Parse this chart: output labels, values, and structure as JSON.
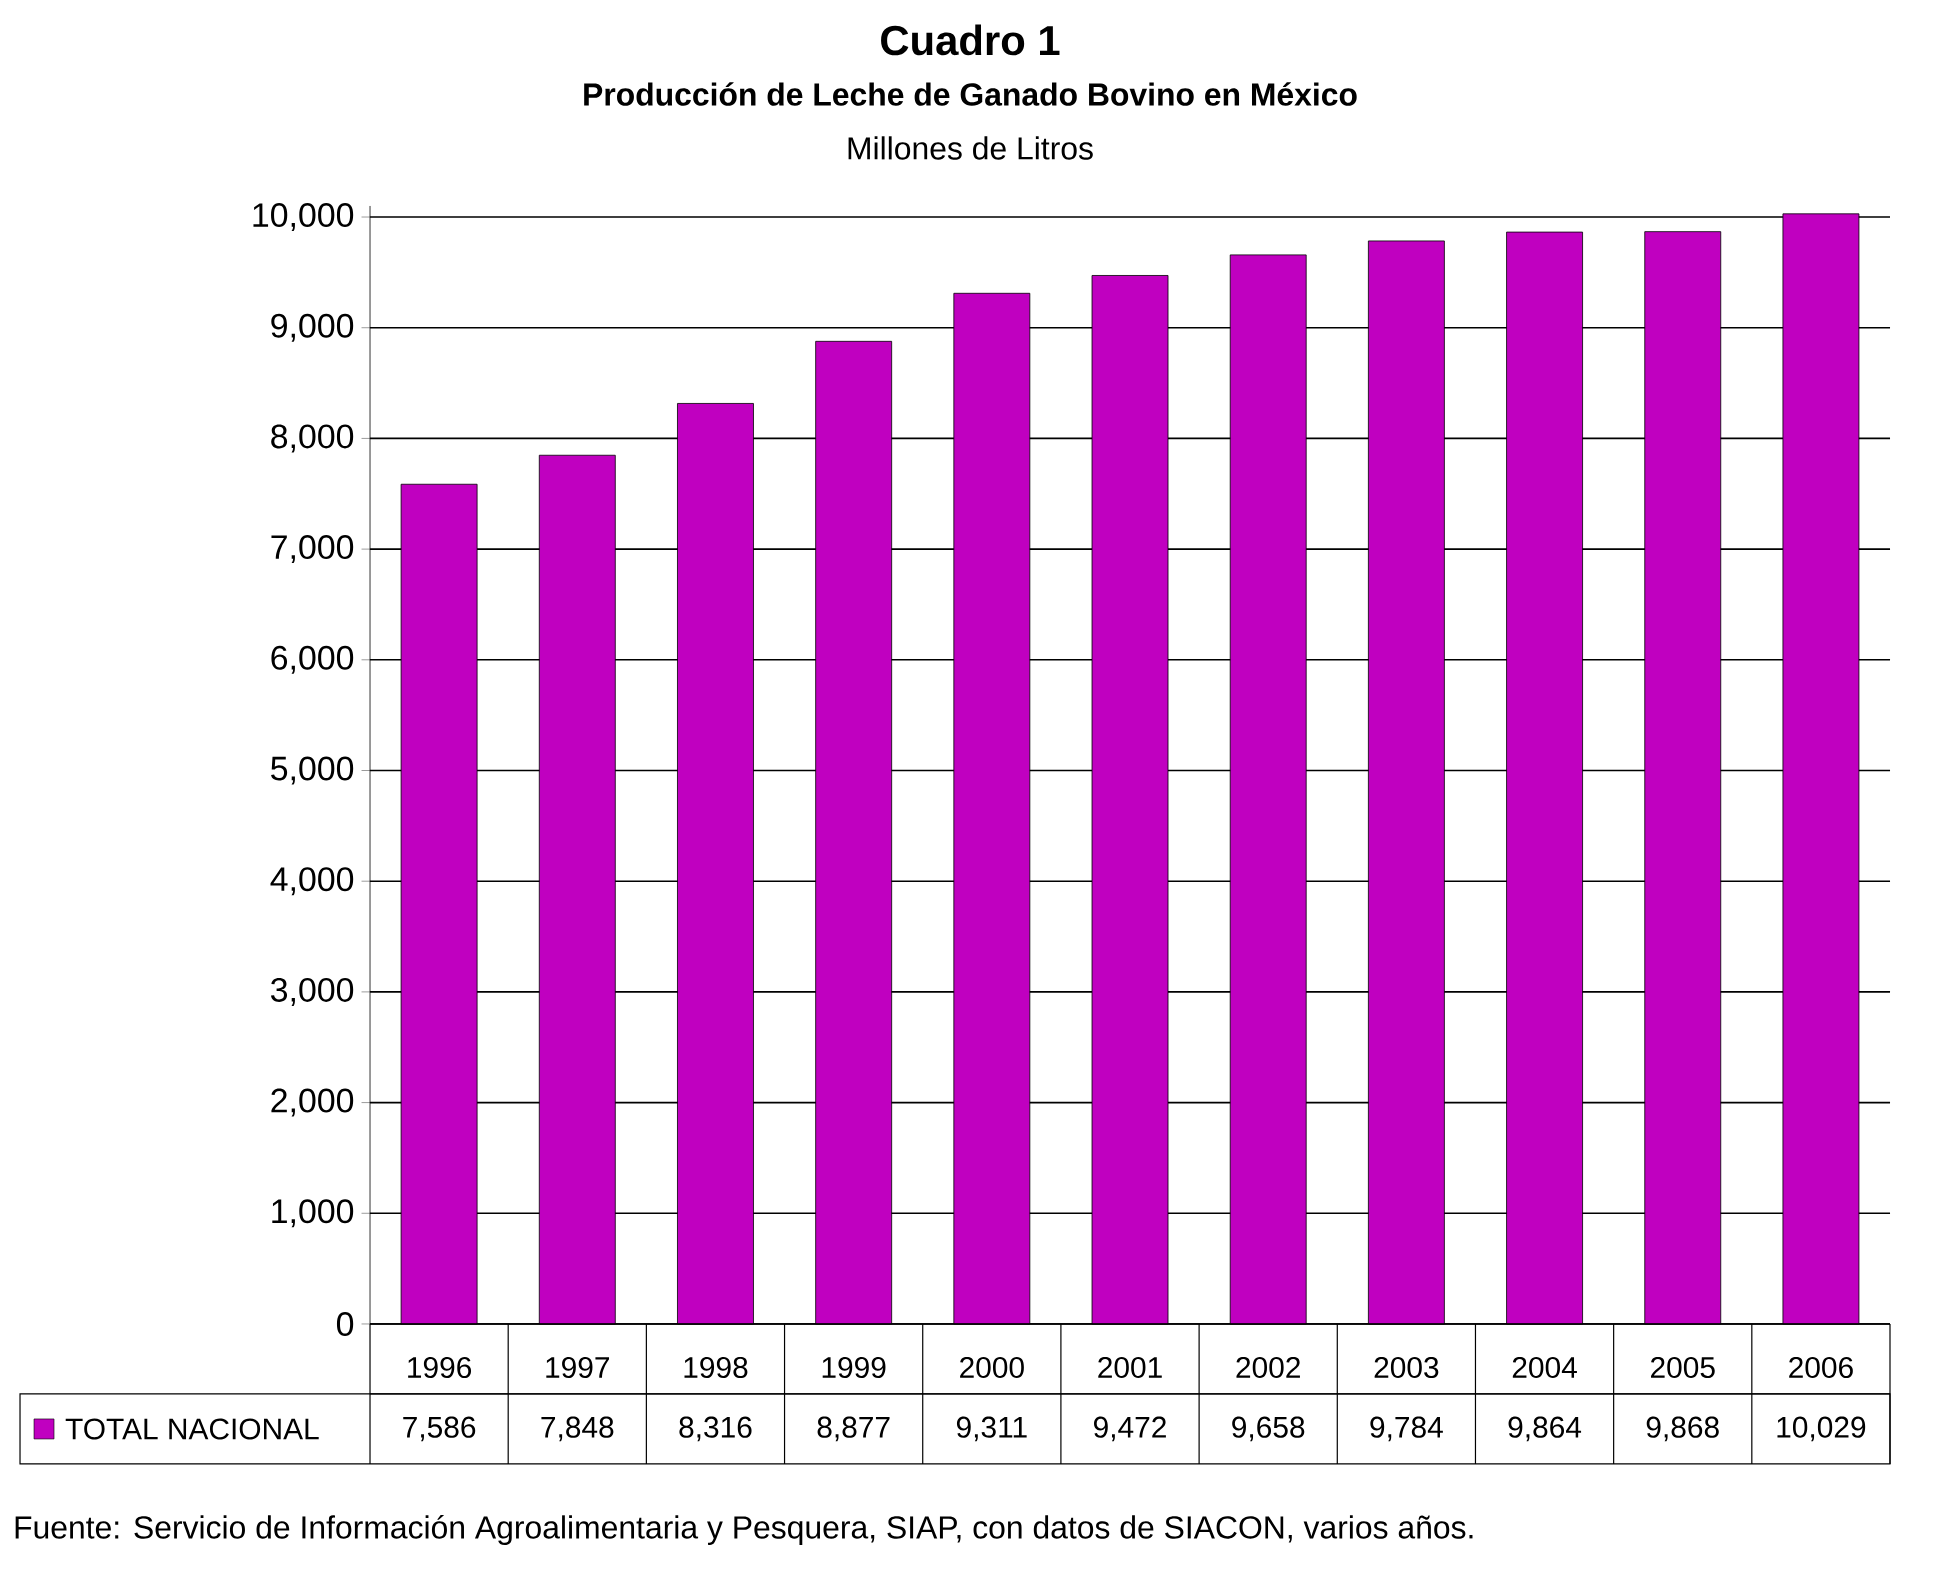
{
  "chart_data": {
    "type": "bar",
    "title": "Cuadro 1",
    "subtitle": "Producción de Leche de Ganado Bovino en México",
    "categories": [
      "1996",
      "1997",
      "1998",
      "1999",
      "2000",
      "2001",
      "2002",
      "2003",
      "2004",
      "2005",
      "2006"
    ],
    "series": [
      {
        "name": "TOTAL NACIONAL",
        "color": "#c000c0",
        "values": [
          7586,
          7848,
          8316,
          8877,
          9311,
          9472,
          9658,
          9784,
          9864,
          9868,
          10029
        ],
        "value_labels": [
          "7,586",
          "7,848",
          "8,316",
          "8,877",
          "9,311",
          "9,472",
          "9,658",
          "9,784",
          "9,864",
          "9,868",
          "10,029"
        ]
      }
    ],
    "ylim": [
      0,
      10100
    ],
    "yticks": [
      {
        "value": 0,
        "label": "0"
      },
      {
        "value": 1000,
        "label": "1,000"
      },
      {
        "value": 2000,
        "label": "2,000"
      },
      {
        "value": 3000,
        "label": "3,000"
      },
      {
        "value": 4000,
        "label": "4,000"
      },
      {
        "value": 5000,
        "label": "5,000"
      },
      {
        "value": 6000,
        "label": "6,000"
      },
      {
        "value": 7000,
        "label": "7,000"
      },
      {
        "value": 8000,
        "label": "8,000"
      },
      {
        "value": 9000,
        "label": "9,000"
      },
      {
        "value": 10000,
        "label": "10,000"
      }
    ],
    "grid": "y",
    "legend": "bottom",
    "annotations": [
      "Millones de Litros",
      "Fuente: Servicio de Información Agroalimentaria y  Pesquera, SIAP, con datos de SIACON, varios años."
    ]
  }
}
